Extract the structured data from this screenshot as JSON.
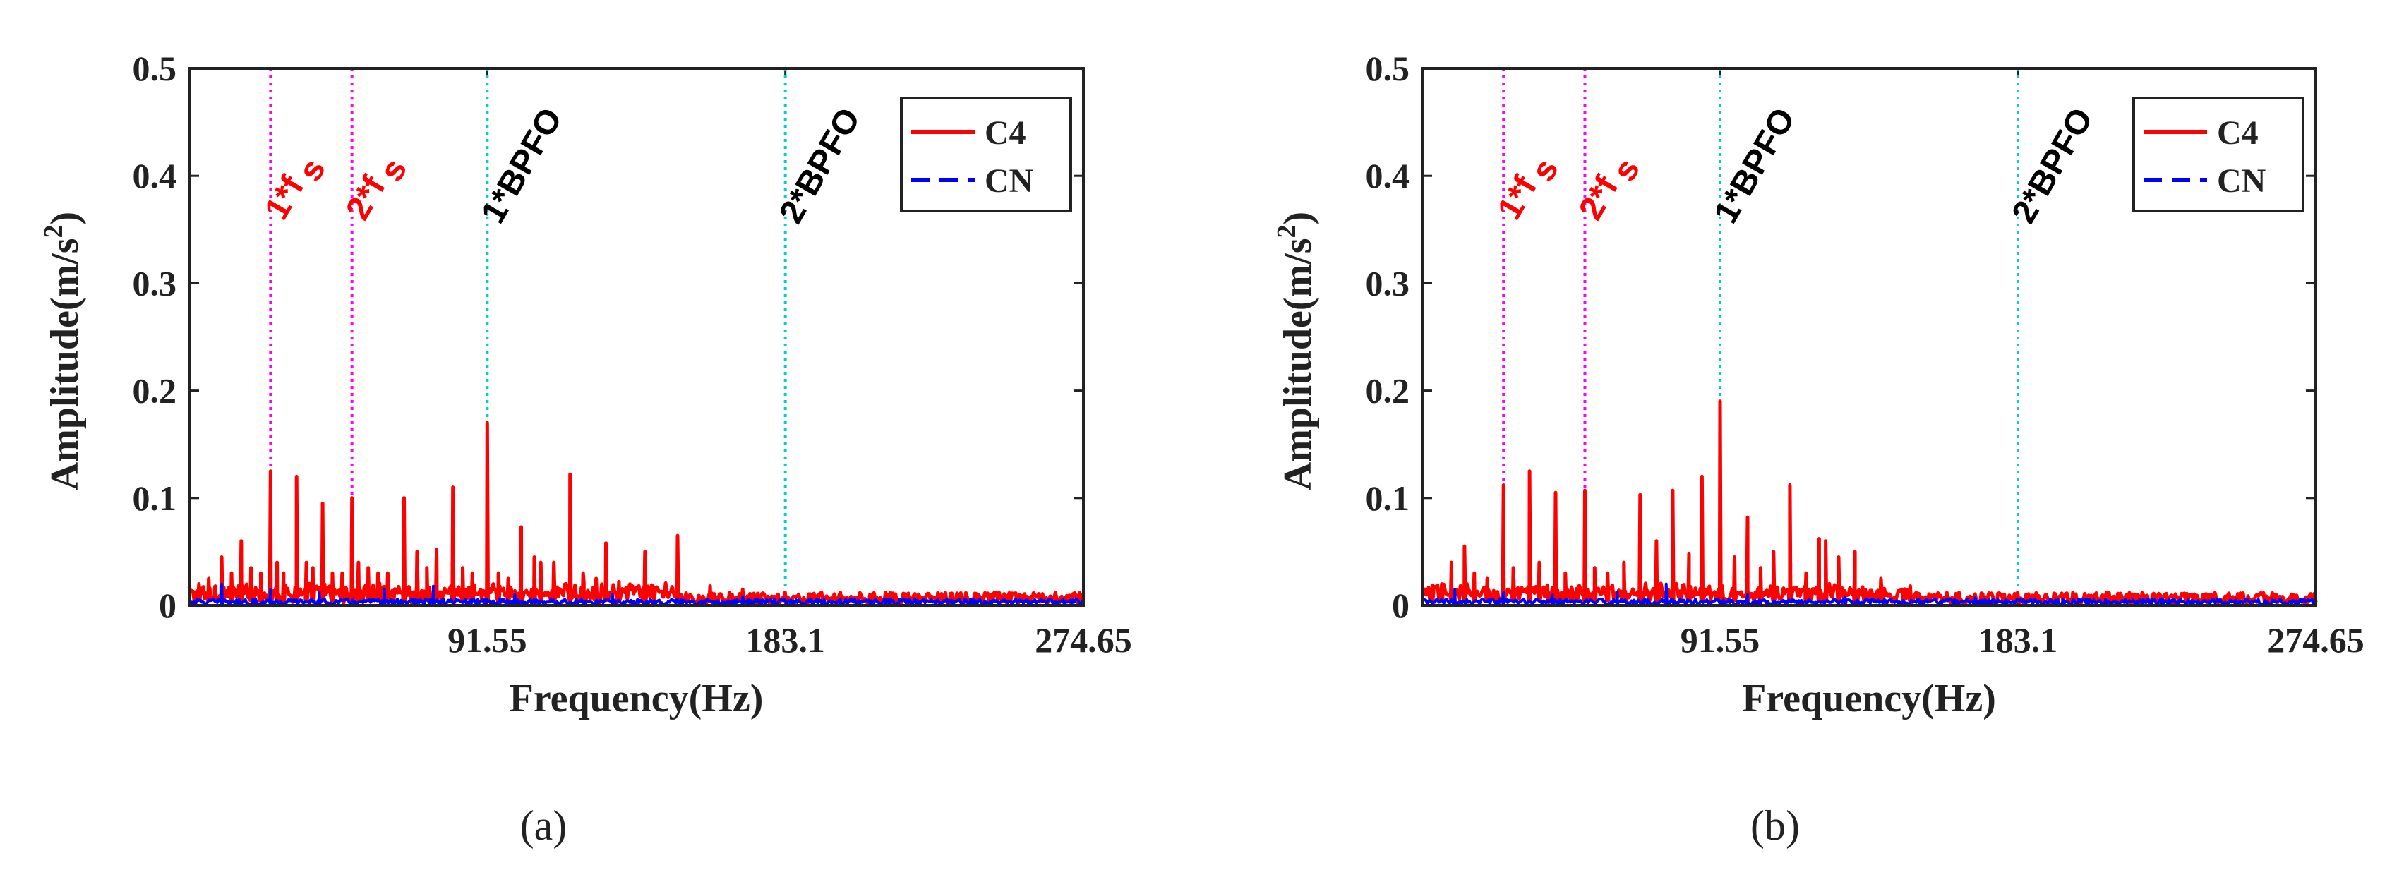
{
  "chart_data": [
    {
      "type": "line",
      "caption": "(a)",
      "xlabel": "Frequency(Hz)",
      "ylabel": "Amplitude(m/s",
      "ylabel_sup": "2",
      "ylabel_close": ")",
      "xlim": [
        0,
        274.65
      ],
      "ylim": [
        0,
        0.5
      ],
      "xticks": [
        91.55,
        183.1,
        274.65
      ],
      "xtick_labels": [
        "91.55",
        "183.1",
        "274.65"
      ],
      "yticks": [
        0,
        0.1,
        0.2,
        0.3,
        0.4,
        0.5
      ],
      "ytick_labels": [
        "0",
        "0.1",
        "0.2",
        "0.3",
        "0.4",
        "0.5"
      ],
      "legend": {
        "position": "top-right",
        "entries": [
          "C4",
          "CN"
        ]
      },
      "markers": [
        {
          "x": 25,
          "label": "1*f",
          "sub": "s",
          "color": "#ff00ff",
          "label_color": "#ff0000"
        },
        {
          "x": 50,
          "label": "2*f",
          "sub": "s",
          "color": "#ff00ff",
          "label_color": "#ff0000"
        },
        {
          "x": 91.55,
          "label": "1*BPFO",
          "sub": "",
          "color": "#00d0d0",
          "label_color": "#000000"
        },
        {
          "x": 183.1,
          "label": "2*BPFO",
          "sub": "",
          "color": "#00d0d0",
          "label_color": "#000000"
        }
      ],
      "series": [
        {
          "name": "C4",
          "color": "#ff0000",
          "style": "solid",
          "peaks": [
            [
              3,
              0.02
            ],
            [
              6,
              0.025
            ],
            [
              8,
              0.018
            ],
            [
              10,
              0.045
            ],
            [
              13,
              0.03
            ],
            [
              16,
              0.06
            ],
            [
              19,
              0.035
            ],
            [
              22,
              0.03
            ],
            [
              25,
              0.125
            ],
            [
              27,
              0.04
            ],
            [
              29,
              0.03
            ],
            [
              33,
              0.12
            ],
            [
              36,
              0.04
            ],
            [
              38,
              0.035
            ],
            [
              41,
              0.095
            ],
            [
              44,
              0.03
            ],
            [
              47,
              0.03
            ],
            [
              50,
              0.1
            ],
            [
              52,
              0.04
            ],
            [
              55,
              0.035
            ],
            [
              58,
              0.03
            ],
            [
              61,
              0.03
            ],
            [
              66,
              0.1
            ],
            [
              70,
              0.05
            ],
            [
              73,
              0.035
            ],
            [
              76,
              0.052
            ],
            [
              81,
              0.11
            ],
            [
              84,
              0.035
            ],
            [
              87,
              0.03
            ],
            [
              91.55,
              0.17
            ],
            [
              95,
              0.03
            ],
            [
              98,
              0.025
            ],
            [
              102,
              0.073
            ],
            [
              106,
              0.045
            ],
            [
              108,
              0.04
            ],
            [
              112,
              0.04
            ],
            [
              117,
              0.122
            ],
            [
              121,
              0.03
            ],
            [
              125,
              0.025
            ],
            [
              128,
              0.058
            ],
            [
              132,
              0.022
            ],
            [
              140,
              0.05
            ],
            [
              150,
              0.065
            ],
            [
              160,
              0.018
            ],
            [
              170,
              0.015
            ],
            [
              183,
              0.012
            ],
            [
              200,
              0.012
            ],
            [
              215,
              0.01
            ],
            [
              230,
              0.01
            ],
            [
              255,
              0.01
            ],
            [
              270,
              0.008
            ]
          ],
          "noise_floor": 0.008
        },
        {
          "name": "CN",
          "color": "#0000ff",
          "style": "dashed",
          "peaks": [
            [
              10,
              0.02
            ],
            [
              25,
              0.015
            ],
            [
              40,
              0.012
            ],
            [
              60,
              0.015
            ],
            [
              75,
              0.018
            ],
            [
              100,
              0.01
            ],
            [
              130,
              0.01
            ],
            [
              170,
              0.008
            ],
            [
              200,
              0.006
            ],
            [
              240,
              0.006
            ]
          ],
          "noise_floor": 0.004
        }
      ]
    },
    {
      "type": "line",
      "caption": "(b)",
      "xlabel": "Frequency(Hz)",
      "ylabel": "Amplitude(m/s",
      "ylabel_sup": "2",
      "ylabel_close": ")",
      "xlim": [
        0,
        274.65
      ],
      "ylim": [
        0,
        0.5
      ],
      "xticks": [
        91.55,
        183.1,
        274.65
      ],
      "xtick_labels": [
        "91.55",
        "183.1",
        "274.65"
      ],
      "yticks": [
        0,
        0.1,
        0.2,
        0.3,
        0.4,
        0.5
      ],
      "ytick_labels": [
        "0",
        "0.1",
        "0.2",
        "0.3",
        "0.4",
        "0.5"
      ],
      "legend": {
        "position": "top-right",
        "entries": [
          "C4",
          "CN"
        ]
      },
      "markers": [
        {
          "x": 25,
          "label": "1*f",
          "sub": "s",
          "color": "#ff00ff",
          "label_color": "#ff0000"
        },
        {
          "x": 50,
          "label": "2*f",
          "sub": "s",
          "color": "#ff00ff",
          "label_color": "#ff0000"
        },
        {
          "x": 91.55,
          "label": "1*BPFO",
          "sub": "",
          "color": "#00d0d0",
          "label_color": "#000000"
        },
        {
          "x": 183.1,
          "label": "2*BPFO",
          "sub": "",
          "color": "#00d0d0",
          "label_color": "#000000"
        }
      ],
      "series": [
        {
          "name": "C4",
          "color": "#ff0000",
          "style": "solid",
          "peaks": [
            [
              3,
              0.015
            ],
            [
              6,
              0.02
            ],
            [
              9,
              0.04
            ],
            [
              13,
              0.055
            ],
            [
              16,
              0.03
            ],
            [
              20,
              0.025
            ],
            [
              25,
              0.112
            ],
            [
              28,
              0.035
            ],
            [
              33,
              0.125
            ],
            [
              36,
              0.04
            ],
            [
              41,
              0.105
            ],
            [
              44,
              0.03
            ],
            [
              50,
              0.107
            ],
            [
              53,
              0.035
            ],
            [
              57,
              0.03
            ],
            [
              62,
              0.04
            ],
            [
              67,
              0.103
            ],
            [
              72,
              0.06
            ],
            [
              77,
              0.107
            ],
            [
              82,
              0.048
            ],
            [
              86,
              0.12
            ],
            [
              91.55,
              0.19
            ],
            [
              96,
              0.045
            ],
            [
              100,
              0.082
            ],
            [
              104,
              0.035
            ],
            [
              108,
              0.05
            ],
            [
              113,
              0.112
            ],
            [
              118,
              0.03
            ],
            [
              122,
              0.062
            ],
            [
              124,
              0.06
            ],
            [
              128,
              0.045
            ],
            [
              133,
              0.05
            ],
            [
              141,
              0.025
            ],
            [
              150,
              0.018
            ],
            [
              165,
              0.012
            ],
            [
              183,
              0.012
            ],
            [
              200,
              0.012
            ],
            [
              220,
              0.01
            ],
            [
              240,
              0.01
            ],
            [
              262,
              0.01
            ]
          ],
          "noise_floor": 0.008
        },
        {
          "name": "CN",
          "color": "#0000ff",
          "style": "dashed",
          "peaks": [
            [
              10,
              0.015
            ],
            [
              25,
              0.012
            ],
            [
              40,
              0.01
            ],
            [
              60,
              0.012
            ],
            [
              75,
              0.02
            ],
            [
              100,
              0.01
            ],
            [
              130,
              0.008
            ],
            [
              170,
              0.007
            ],
            [
              210,
              0.006
            ],
            [
              250,
              0.005
            ]
          ],
          "noise_floor": 0.004
        }
      ]
    }
  ]
}
